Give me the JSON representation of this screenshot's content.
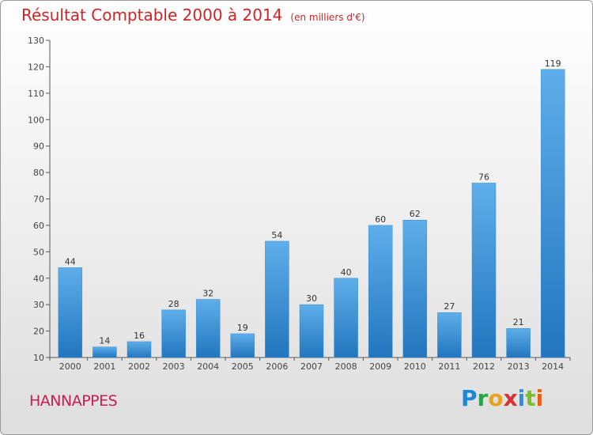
{
  "header": {
    "title": "Résultat Comptable 2000 à 2014",
    "unit": "(en milliers d'€)"
  },
  "footer": {
    "town": "HANNAPPES",
    "logo_letters": [
      "P",
      "r",
      "o",
      "x",
      "i",
      "t",
      "i"
    ],
    "logo_text": "Proxiti"
  },
  "colors": {
    "bar_light": "#5eaeea",
    "bar_dark": "#2276be",
    "title": "#d02424",
    "town": "#c81e50"
  },
  "chart_data": {
    "type": "bar",
    "title": "Résultat Comptable 2000 à 2014",
    "subtitle": "(en milliers d'€)",
    "categories": [
      "2000",
      "2001",
      "2002",
      "2003",
      "2004",
      "2005",
      "2006",
      "2007",
      "2008",
      "2009",
      "2010",
      "2011",
      "2012",
      "2013",
      "2014"
    ],
    "values": [
      44,
      14,
      16,
      28,
      32,
      19,
      54,
      30,
      40,
      60,
      62,
      27,
      76,
      21,
      119
    ],
    "ylim": [
      10,
      130
    ],
    "yticks": [
      10,
      20,
      30,
      40,
      50,
      60,
      70,
      80,
      90,
      100,
      110,
      120,
      130
    ],
    "xlabel": "",
    "ylabel": "",
    "grid": false,
    "legend": "none"
  }
}
